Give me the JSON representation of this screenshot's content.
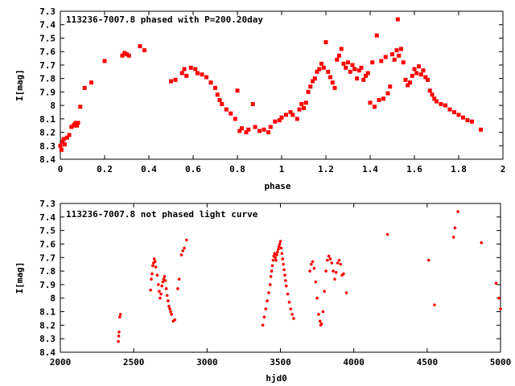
{
  "chart_data": [
    {
      "type": "scatter",
      "title": "113236-7007.8 phased with P=200.20day",
      "xlabel": "phase",
      "ylabel": "I[mag]",
      "xlim": [
        0,
        2
      ],
      "ylim": [
        7.3,
        8.4
      ],
      "y_inverted": true,
      "x_ticks": [
        "0",
        "0.2",
        "0.4",
        "0.6",
        "0.8",
        "1",
        "1.2",
        "1.4",
        "1.6",
        "1.8",
        "2"
      ],
      "y_ticks": [
        "7.3",
        "7.4",
        "7.5",
        "7.6",
        "7.7",
        "7.8",
        "7.9",
        "8",
        "8.1",
        "8.2",
        "8.3",
        "8.4"
      ],
      "marker_color": "#ff0000",
      "points": [
        [
          0.0,
          8.3
        ],
        [
          0.005,
          8.33
        ],
        [
          0.01,
          8.27
        ],
        [
          0.015,
          8.25
        ],
        [
          0.02,
          8.29
        ],
        [
          0.03,
          8.24
        ],
        [
          0.04,
          8.22
        ],
        [
          0.05,
          8.16
        ],
        [
          0.06,
          8.15
        ],
        [
          0.065,
          8.14
        ],
        [
          0.07,
          8.13
        ],
        [
          0.075,
          8.15
        ],
        [
          0.08,
          8.13
        ],
        [
          0.09,
          8.01
        ],
        [
          0.11,
          7.87
        ],
        [
          0.14,
          7.83
        ],
        [
          0.2,
          7.67
        ],
        [
          0.28,
          7.63
        ],
        [
          0.29,
          7.61
        ],
        [
          0.3,
          7.62
        ],
        [
          0.31,
          7.63
        ],
        [
          0.36,
          7.56
        ],
        [
          0.38,
          7.59
        ],
        [
          0.5,
          7.82
        ],
        [
          0.52,
          7.81
        ],
        [
          0.55,
          7.76
        ],
        [
          0.56,
          7.73
        ],
        [
          0.57,
          7.78
        ],
        [
          0.59,
          7.72
        ],
        [
          0.61,
          7.73
        ],
        [
          0.62,
          7.76
        ],
        [
          0.64,
          7.77
        ],
        [
          0.66,
          7.79
        ],
        [
          0.68,
          7.83
        ],
        [
          0.7,
          7.87
        ],
        [
          0.71,
          7.92
        ],
        [
          0.72,
          7.96
        ],
        [
          0.73,
          7.99
        ],
        [
          0.75,
          8.03
        ],
        [
          0.77,
          8.06
        ],
        [
          0.79,
          8.1
        ],
        [
          0.8,
          7.89
        ],
        [
          0.81,
          8.19
        ],
        [
          0.82,
          8.17
        ],
        [
          0.84,
          8.2
        ],
        [
          0.85,
          8.18
        ],
        [
          0.87,
          7.99
        ],
        [
          0.88,
          8.16
        ],
        [
          0.9,
          8.19
        ],
        [
          0.92,
          8.18
        ],
        [
          0.94,
          8.2
        ],
        [
          0.95,
          8.16
        ],
        [
          0.97,
          8.12
        ],
        [
          0.99,
          8.11
        ],
        [
          1.0,
          8.09
        ],
        [
          1.02,
          8.07
        ],
        [
          1.04,
          8.05
        ],
        [
          1.05,
          8.07
        ],
        [
          1.07,
          8.1
        ],
        [
          1.08,
          8.03
        ],
        [
          1.09,
          7.99
        ],
        [
          1.1,
          8.02
        ],
        [
          1.11,
          7.98
        ],
        [
          1.12,
          7.9
        ],
        [
          1.13,
          7.86
        ],
        [
          1.14,
          7.82
        ],
        [
          1.15,
          7.8
        ],
        [
          1.16,
          7.75
        ],
        [
          1.17,
          7.73
        ],
        [
          1.18,
          7.69
        ],
        [
          1.19,
          7.72
        ],
        [
          1.2,
          7.53
        ],
        [
          1.21,
          7.75
        ],
        [
          1.22,
          7.79
        ],
        [
          1.23,
          7.83
        ],
        [
          1.24,
          7.87
        ],
        [
          1.25,
          7.66
        ],
        [
          1.26,
          7.63
        ],
        [
          1.27,
          7.58
        ],
        [
          1.28,
          7.69
        ],
        [
          1.29,
          7.72
        ],
        [
          1.3,
          7.68
        ],
        [
          1.31,
          7.75
        ],
        [
          1.32,
          7.7
        ],
        [
          1.33,
          7.73
        ],
        [
          1.34,
          7.8
        ],
        [
          1.35,
          7.74
        ],
        [
          1.36,
          7.72
        ],
        [
          1.37,
          7.81
        ],
        [
          1.38,
          7.78
        ],
        [
          1.39,
          7.76
        ],
        [
          1.4,
          7.98
        ],
        [
          1.41,
          7.68
        ],
        [
          1.42,
          8.01
        ],
        [
          1.43,
          7.48
        ],
        [
          1.44,
          7.96
        ],
        [
          1.45,
          7.67
        ],
        [
          1.46,
          7.95
        ],
        [
          1.47,
          7.64
        ],
        [
          1.48,
          7.91
        ],
        [
          1.49,
          7.86
        ],
        [
          1.5,
          7.62
        ],
        [
          1.51,
          7.66
        ],
        [
          1.52,
          7.59
        ],
        [
          1.525,
          7.36
        ],
        [
          1.53,
          7.63
        ],
        [
          1.54,
          7.58
        ],
        [
          1.55,
          7.68
        ],
        [
          1.56,
          7.81
        ],
        [
          1.57,
          7.85
        ],
        [
          1.58,
          7.83
        ],
        [
          1.59,
          7.78
        ],
        [
          1.6,
          7.73
        ],
        [
          1.61,
          7.76
        ],
        [
          1.62,
          7.71
        ],
        [
          1.63,
          7.77
        ],
        [
          1.64,
          7.74
        ],
        [
          1.65,
          7.79
        ],
        [
          1.66,
          7.81
        ],
        [
          1.67,
          7.89
        ],
        [
          1.68,
          7.92
        ],
        [
          1.69,
          7.95
        ],
        [
          1.7,
          7.97
        ],
        [
          1.72,
          7.99
        ],
        [
          1.74,
          8.0
        ],
        [
          1.76,
          8.03
        ],
        [
          1.78,
          8.05
        ],
        [
          1.8,
          8.07
        ],
        [
          1.82,
          8.09
        ],
        [
          1.84,
          8.11
        ],
        [
          1.86,
          8.12
        ],
        [
          1.9,
          8.18
        ]
      ]
    },
    {
      "type": "scatter",
      "title": "113236-7007.8 not phased light curve",
      "xlabel": "hjd0",
      "ylabel": "I[mag]",
      "xlim": [
        2000,
        5000
      ],
      "ylim": [
        7.3,
        8.4
      ],
      "y_inverted": true,
      "x_ticks": [
        "2000",
        "2500",
        "3000",
        "3500",
        "4000",
        "4500",
        "5000"
      ],
      "y_ticks": [
        "7.3",
        "7.4",
        "7.5",
        "7.6",
        "7.7",
        "7.8",
        "7.9",
        "8",
        "8.1",
        "8.2",
        "8.3",
        "8.4"
      ],
      "marker_color": "#ff0000",
      "points": [
        [
          2395,
          8.32
        ],
        [
          2398,
          8.28
        ],
        [
          2400,
          8.25
        ],
        [
          2405,
          8.14
        ],
        [
          2410,
          8.12
        ],
        [
          2615,
          7.94
        ],
        [
          2620,
          7.86
        ],
        [
          2625,
          7.82
        ],
        [
          2630,
          7.76
        ],
        [
          2635,
          7.74
        ],
        [
          2640,
          7.71
        ],
        [
          2645,
          7.73
        ],
        [
          2650,
          7.77
        ],
        [
          2660,
          7.83
        ],
        [
          2668,
          7.9
        ],
        [
          2674,
          7.95
        ],
        [
          2680,
          8.0
        ],
        [
          2686,
          7.97
        ],
        [
          2692,
          7.91
        ],
        [
          2698,
          7.88
        ],
        [
          2704,
          7.86
        ],
        [
          2710,
          7.84
        ],
        [
          2716,
          7.87
        ],
        [
          2722,
          7.93
        ],
        [
          2728,
          7.98
        ],
        [
          2734,
          8.02
        ],
        [
          2740,
          8.06
        ],
        [
          2746,
          8.08
        ],
        [
          2752,
          8.1
        ],
        [
          2758,
          8.12
        ],
        [
          2770,
          8.17
        ],
        [
          2780,
          8.16
        ],
        [
          2800,
          7.93
        ],
        [
          2810,
          7.86
        ],
        [
          2825,
          7.68
        ],
        [
          2835,
          7.65
        ],
        [
          2845,
          7.63
        ],
        [
          2860,
          7.57
        ],
        [
          3380,
          8.2
        ],
        [
          3390,
          8.14
        ],
        [
          3400,
          8.08
        ],
        [
          3410,
          8.02
        ],
        [
          3420,
          7.96
        ],
        [
          3430,
          7.9
        ],
        [
          3435,
          7.84
        ],
        [
          3440,
          7.8
        ],
        [
          3445,
          7.76
        ],
        [
          3450,
          7.72
        ],
        [
          3455,
          7.69
        ],
        [
          3460,
          7.67
        ],
        [
          3465,
          7.7
        ],
        [
          3470,
          7.72
        ],
        [
          3475,
          7.68
        ],
        [
          3480,
          7.66
        ],
        [
          3485,
          7.64
        ],
        [
          3490,
          7.62
        ],
        [
          3495,
          7.6
        ],
        [
          3500,
          7.58
        ],
        [
          3505,
          7.63
        ],
        [
          3510,
          7.67
        ],
        [
          3515,
          7.71
        ],
        [
          3520,
          7.75
        ],
        [
          3525,
          7.79
        ],
        [
          3530,
          7.83
        ],
        [
          3535,
          7.87
        ],
        [
          3540,
          7.91
        ],
        [
          3550,
          7.97
        ],
        [
          3560,
          8.03
        ],
        [
          3570,
          8.08
        ],
        [
          3580,
          8.12
        ],
        [
          3590,
          8.15
        ],
        [
          3700,
          7.8
        ],
        [
          3710,
          7.75
        ],
        [
          3720,
          7.73
        ],
        [
          3730,
          7.78
        ],
        [
          3740,
          7.88
        ],
        [
          3750,
          8.0
        ],
        [
          3760,
          8.12
        ],
        [
          3770,
          8.17
        ],
        [
          3775,
          8.2
        ],
        [
          3780,
          8.19
        ],
        [
          3790,
          8.1
        ],
        [
          3800,
          7.95
        ],
        [
          3810,
          7.8
        ],
        [
          3820,
          7.72
        ],
        [
          3830,
          7.69
        ],
        [
          3840,
          7.71
        ],
        [
          3850,
          7.74
        ],
        [
          3860,
          7.8
        ],
        [
          3870,
          7.86
        ],
        [
          3880,
          7.81
        ],
        [
          3890,
          7.74
        ],
        [
          3900,
          7.72
        ],
        [
          3910,
          7.75
        ],
        [
          3920,
          7.83
        ],
        [
          3930,
          7.82
        ],
        [
          3950,
          7.96
        ],
        [
          4230,
          7.53
        ],
        [
          4510,
          7.72
        ],
        [
          4550,
          8.05
        ],
        [
          4680,
          7.55
        ],
        [
          4690,
          7.48
        ],
        [
          4710,
          7.36
        ],
        [
          4870,
          7.59
        ],
        [
          4970,
          7.89
        ],
        [
          4990,
          8.0
        ],
        [
          5000,
          8.08
        ]
      ]
    }
  ]
}
